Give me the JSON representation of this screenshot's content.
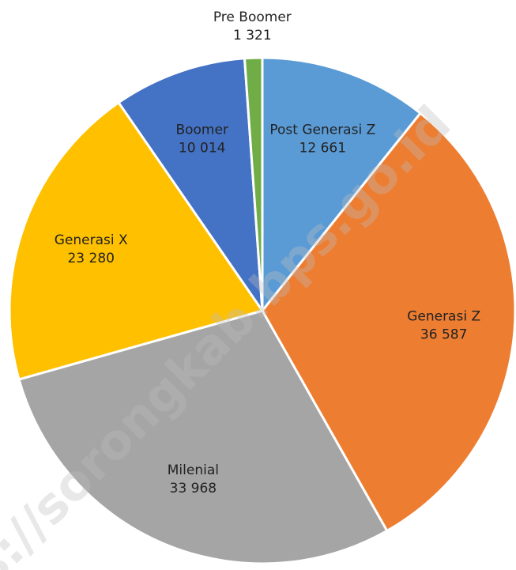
{
  "chart_data": {
    "type": "pie",
    "categories": [
      "Post Generasi Z",
      "Generasi Z",
      "Milenial",
      "Generasi X",
      "Boomer",
      "Pre Boomer"
    ],
    "values": [
      12661,
      36587,
      33968,
      23280,
      10014,
      1321
    ],
    "value_labels": [
      "12 661",
      "36 587",
      "33 968",
      "23 280",
      "10 014",
      "1 321"
    ],
    "colors": [
      "#5b9bd5",
      "#ed7d31",
      "#a5a5a5",
      "#ffc000",
      "#4472c4",
      "#70ad47"
    ],
    "watermark": "s://sorongkab.bps.go.id"
  }
}
